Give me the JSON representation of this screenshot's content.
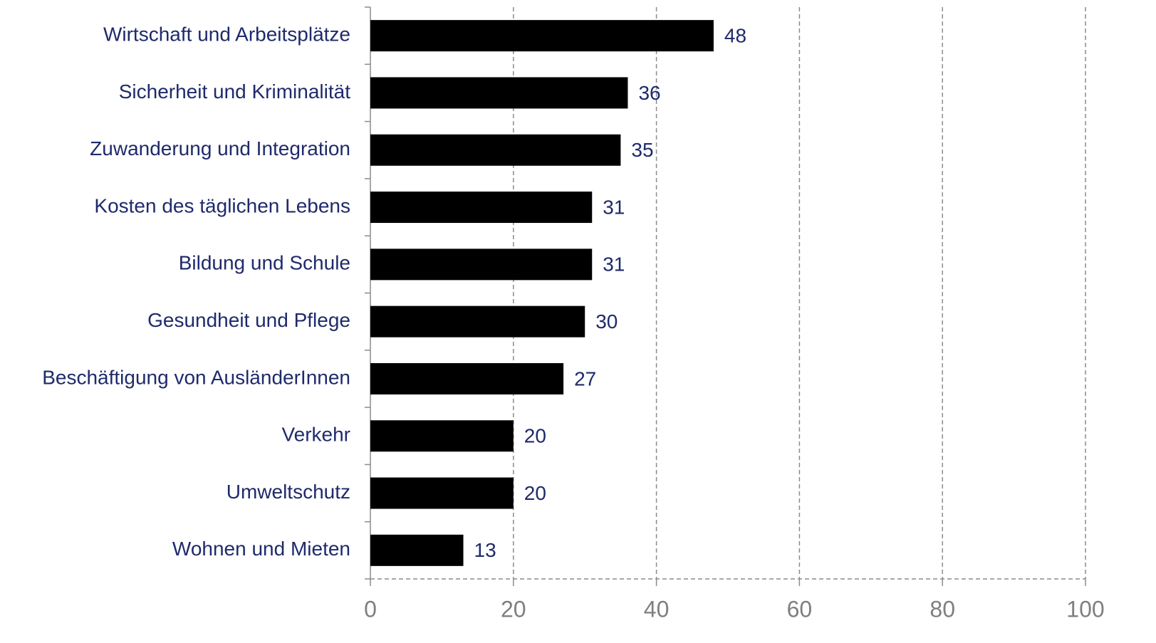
{
  "chart_data": {
    "type": "barh",
    "categories": [
      "Wirtschaft und Arbeitsplätze",
      "Sicherheit und Kriminalität",
      "Zuwanderung und Integration",
      "Kosten des täglichen Lebens",
      "Bildung und Schule",
      "Gesundheit und Pflege",
      "Beschäftigung von AusländerInnen",
      "Verkehr",
      "Umweltschutz",
      "Wohnen und Mieten"
    ],
    "values": [
      48,
      36,
      35,
      31,
      31,
      30,
      27,
      20,
      20,
      13
    ],
    "color": "#000000",
    "xlim": [
      0,
      100
    ],
    "xticks": [
      0,
      20,
      40,
      60,
      80,
      100
    ],
    "grid": true
  }
}
